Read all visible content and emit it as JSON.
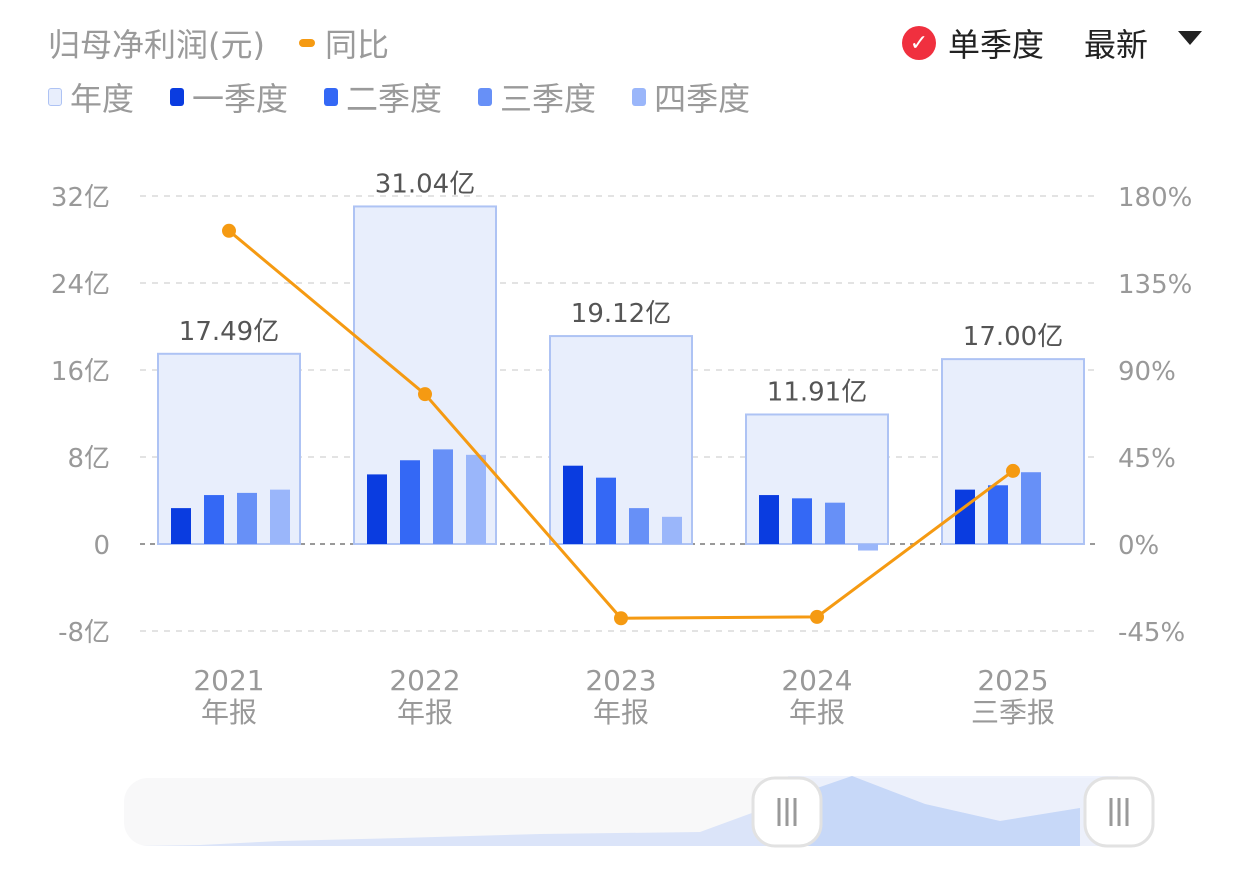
{
  "header": {
    "title": "归母净利润(元)",
    "yoy_legend": "同比",
    "single_quarter_label": "单季度",
    "checked": true,
    "sort_label": "最新"
  },
  "legend": [
    {
      "label": "年度",
      "color": "#e8eefc"
    },
    {
      "label": "一季度",
      "color": "#0a3ce0"
    },
    {
      "label": "二季度",
      "color": "#3468f5"
    },
    {
      "label": "三季度",
      "color": "#6790f7"
    },
    {
      "label": "四季度",
      "color": "#9ab6fa"
    }
  ],
  "colors": {
    "annual_fill": "#e8eefc",
    "annual_border": "#aec3f4",
    "yoy_line": "#f59a12"
  },
  "chart_data": {
    "type": "bar",
    "categories": [
      [
        "2021",
        "年报"
      ],
      [
        "2022",
        "年报"
      ],
      [
        "2023",
        "年报"
      ],
      [
        "2024",
        "年报"
      ],
      [
        "2025",
        "三季报"
      ]
    ],
    "annual": {
      "name": "年度",
      "values": [
        17.49,
        31.04,
        19.12,
        11.91,
        17.0
      ],
      "labels": [
        "17.49亿",
        "31.04亿",
        "19.12亿",
        "11.91亿",
        "17.00亿"
      ]
    },
    "series": [
      {
        "name": "一季度",
        "values": [
          3.3,
          6.4,
          7.2,
          4.5,
          5.0
        ]
      },
      {
        "name": "二季度",
        "values": [
          4.5,
          7.7,
          6.1,
          4.2,
          5.4
        ]
      },
      {
        "name": "三季度",
        "values": [
          4.7,
          8.7,
          3.3,
          3.8,
          6.6
        ]
      },
      {
        "name": "四季度",
        "values": [
          5.0,
          8.2,
          2.5,
          -0.6,
          null
        ]
      }
    ],
    "yoy": {
      "name": "同比",
      "values": [
        162,
        77.5,
        -38.4,
        -37.7,
        37.8
      ]
    },
    "y_left": {
      "ticks": [
        "32亿",
        "24亿",
        "16亿",
        "8亿",
        "0",
        "-8亿"
      ],
      "range": [
        -8,
        32
      ],
      "unit": "亿"
    },
    "y_right": {
      "ticks": [
        "180%",
        "135%",
        "90%",
        "45%",
        "0%",
        "-45%"
      ],
      "range": [
        -45,
        180
      ]
    },
    "grid": true
  },
  "slider": {
    "range_start": 0.6,
    "range_end": 1.0
  }
}
